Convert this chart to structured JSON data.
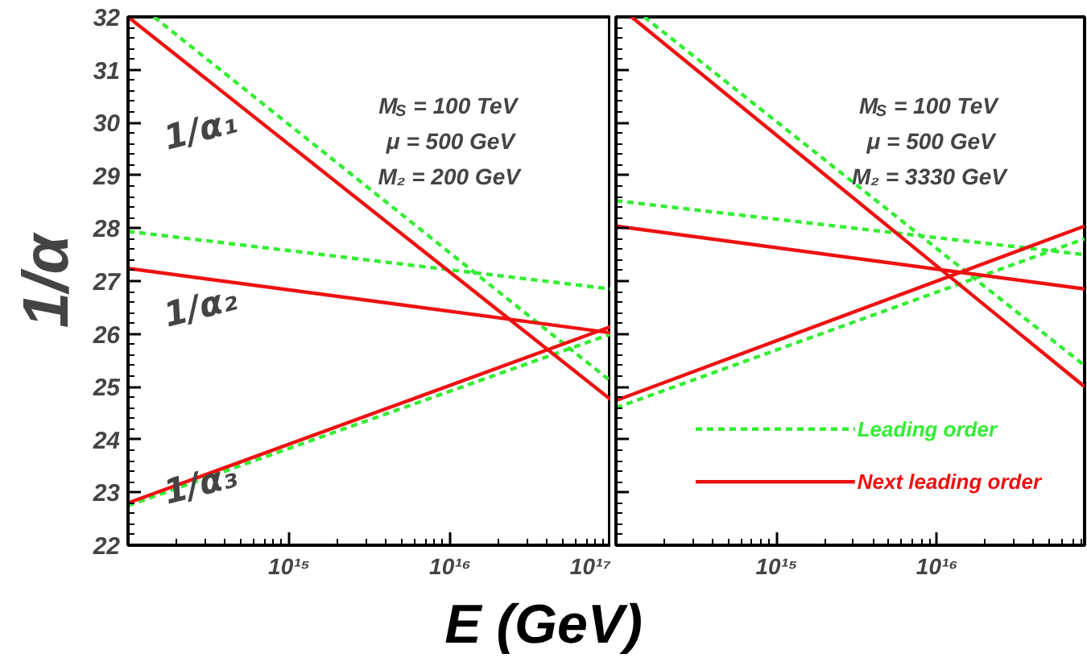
{
  "chart_data": [
    {
      "type": "line",
      "ylabel": "1/α",
      "xlabel": "E (GeV)",
      "log": "x",
      "xlim": [
        100000000000000.0,
        1e+17
      ],
      "ylim": [
        22,
        32
      ],
      "xticks": [
        {
          "value": 1000000000000000.0,
          "label": "10¹⁵"
        },
        {
          "value": 1e+16,
          "label": "10¹⁶"
        },
        {
          "value": 1e+17,
          "label": "10¹⁷"
        }
      ],
      "yticks": [
        22,
        23,
        24,
        25,
        26,
        27,
        28,
        29,
        30,
        31,
        32
      ],
      "legend": false,
      "annotations": [
        "1/α₁",
        "1/α₂",
        "1/α₃",
        "M$_{S}$ = 100 TeV",
        "μ = 500 GeV",
        "M₂ = 200 GeV"
      ],
      "series": [
        {
          "color": "#33ee33",
          "line_style": "dashed",
          "x": [
            145000000000000.0,
            1e+17
          ],
          "values": [
            32,
            25.1
          ]
        },
        {
          "color": "#33ee33",
          "line_style": "dashed",
          "x": [
            100000000000000.0,
            1e+17
          ],
          "values": [
            27.94,
            26.85
          ]
        },
        {
          "color": "#33ee33",
          "line_style": "dashed",
          "x": [
            100000000000000.0,
            1e+17
          ],
          "values": [
            22.75,
            26.0
          ]
        },
        {
          "color": "#ee1111",
          "line_style": "solid",
          "x": [
            100000000000000.0,
            1e+17
          ],
          "values": [
            32,
            24.75
          ]
        },
        {
          "color": "#ee1111",
          "line_style": "solid",
          "x": [
            100000000000000.0,
            1e+17
          ],
          "values": [
            27.24,
            26.02
          ]
        },
        {
          "color": "#ee1111",
          "line_style": "solid",
          "x": [
            100000000000000.0,
            1e+17
          ],
          "values": [
            22.8,
            26.14
          ]
        }
      ]
    },
    {
      "type": "line",
      "log": "x",
      "xlim": [
        100000000000000.0,
        8.3e+16
      ],
      "ylim": [
        22,
        32
      ],
      "xticks": [
        {
          "value": 1000000000000000.0,
          "label": "10¹⁵"
        },
        {
          "value": 1e+16,
          "label": "10¹⁶"
        }
      ],
      "yticks": [
        22,
        23,
        24,
        25,
        26,
        27,
        28,
        29,
        30,
        31,
        32
      ],
      "tick_labels": "x",
      "legend": "bottom right",
      "annotations": [
        "M$_{S}$ = 100 TeV",
        "μ = 500 GeV",
        "M₂ = 3330 GeV"
      ],
      "series": [
        {
          "name": "Leading order",
          "color": "#33ee33",
          "line_style": "dashed",
          "x": [
            150000000000000.0,
            8.3e+16
          ],
          "values": [
            32,
            25.4
          ]
        },
        {
          "color": "#33ee33",
          "line_style": "dashed",
          "x": [
            100000000000000.0,
            8.3e+16
          ],
          "values": [
            28.52,
            27.5
          ]
        },
        {
          "color": "#33ee33",
          "line_style": "dashed",
          "x": [
            100000000000000.0,
            8.3e+16
          ],
          "values": [
            24.6,
            27.8
          ]
        },
        {
          "name": "Next leading order",
          "color": "#ee1111",
          "line_style": "solid",
          "x": [
            125000000000000.0,
            8.3e+16
          ],
          "values": [
            32,
            25.0
          ]
        },
        {
          "color": "#ee1111",
          "line_style": "solid",
          "x": [
            100000000000000.0,
            8.3e+16
          ],
          "values": [
            28.04,
            26.85
          ]
        },
        {
          "color": "#ee1111",
          "line_style": "solid",
          "x": [
            100000000000000.0,
            8.3e+16
          ],
          "values": [
            24.74,
            28.04
          ]
        }
      ]
    }
  ]
}
